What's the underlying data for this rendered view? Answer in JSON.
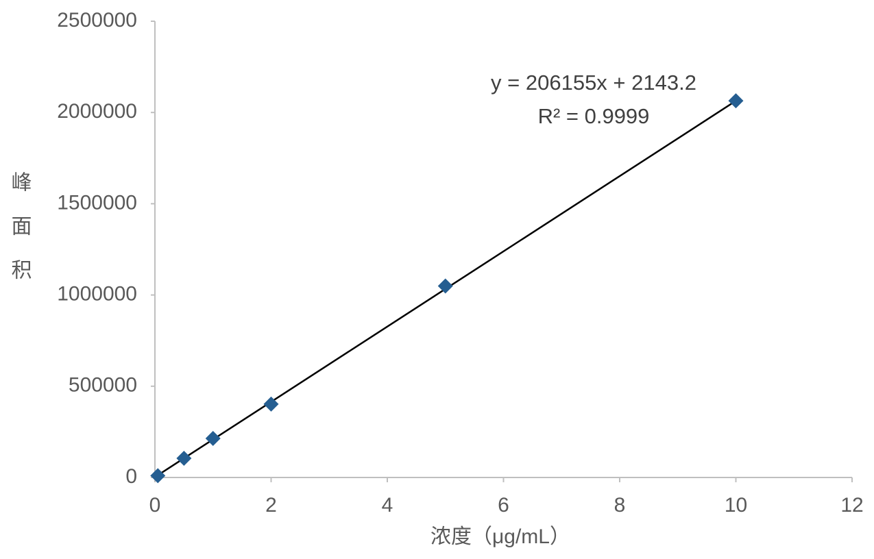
{
  "chart_data": {
    "type": "scatter",
    "x_label": "浓度（μg/mL）",
    "y_label": "峰面积",
    "x": [
      0.05,
      0.5,
      1,
      2,
      5,
      10
    ],
    "series": [
      {
        "color": "#255e91",
        "values": [
          10000,
          105000,
          214000,
          402000,
          1049000,
          2064000
        ]
      }
    ],
    "trendline": {
      "equation": "y = 206155x + 2143.2",
      "r_squared": "R² = 0.9999",
      "slope": 206155,
      "intercept": 2143.2,
      "color": "#000000"
    },
    "xlim": [
      0,
      12
    ],
    "xticks": [
      0,
      2,
      4,
      6,
      8,
      10,
      12
    ],
    "ylim": [
      0,
      2500000
    ],
    "yticks": [
      0,
      500000,
      1000000,
      1500000,
      2000000,
      2500000
    ],
    "grid": false
  }
}
